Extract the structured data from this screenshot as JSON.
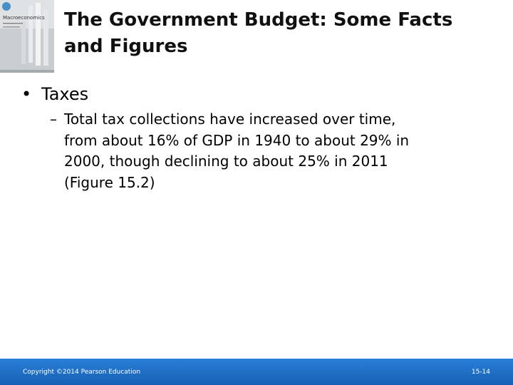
{
  "cover": {
    "title": "Macroeconomics"
  },
  "title": {
    "lines": [
      "The Government Budget: Some Facts",
      "and Figures"
    ]
  },
  "bullet": {
    "text": "Taxes",
    "sub_lines": [
      "Total tax collections have increased over time,",
      "from about 16% of GDP in 1940 to about 29% in",
      "2000, though declining to about 25% in 2011",
      "(Figure 15.2)"
    ]
  },
  "footer": {
    "copyright": "Copyright ©2014 Pearson Education",
    "page": "15-14"
  }
}
